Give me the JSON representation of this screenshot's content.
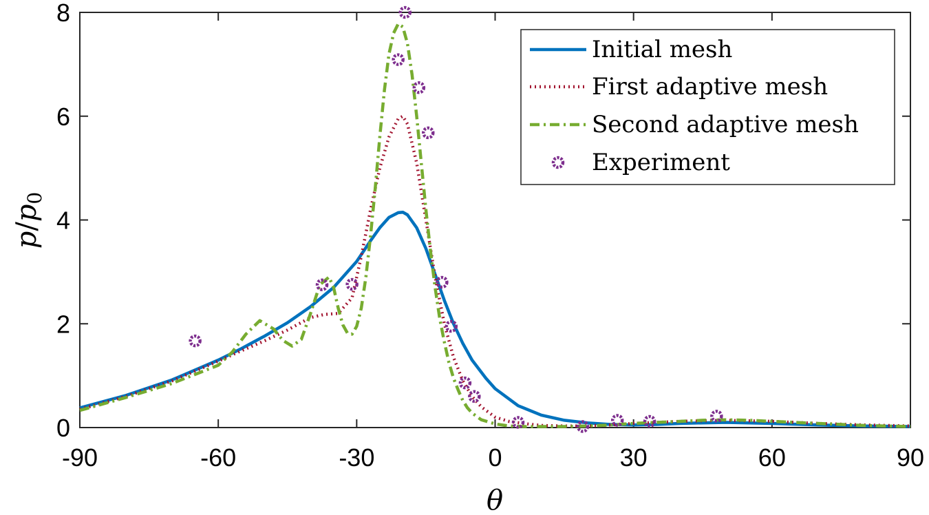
{
  "chart_data": {
    "type": "line",
    "xlabel": "θ",
    "ylabel": "p/p0",
    "ylabel_parts": {
      "p": "p",
      "slash": "/",
      "p0_base": "p",
      "p0_sub": "0"
    },
    "xlim": [
      -90,
      90
    ],
    "ylim": [
      0,
      8
    ],
    "xticks": [
      -90,
      -60,
      -30,
      0,
      30,
      60,
      90
    ],
    "yticks": [
      0,
      2,
      4,
      6,
      8
    ],
    "grid": false,
    "legend_position": "top-right",
    "series": [
      {
        "name": "Initial mesh",
        "style": "solid",
        "color": "#0072BD",
        "x": [
          -90,
          -80,
          -70,
          -60,
          -55,
          -50,
          -45,
          -40,
          -35,
          -30,
          -27,
          -25,
          -23,
          -21,
          -20,
          -19,
          -17,
          -15,
          -13,
          -11,
          -9,
          -7,
          -5,
          -2,
          0,
          5,
          10,
          15,
          20,
          25,
          30,
          35,
          40,
          45,
          50,
          55,
          60,
          70,
          80,
          90
        ],
        "y": [
          0.38,
          0.62,
          0.92,
          1.3,
          1.52,
          1.76,
          2.02,
          2.33,
          2.7,
          3.2,
          3.6,
          3.85,
          4.05,
          4.14,
          4.15,
          4.1,
          3.85,
          3.45,
          2.95,
          2.45,
          2.0,
          1.62,
          1.3,
          0.95,
          0.75,
          0.42,
          0.24,
          0.14,
          0.09,
          0.06,
          0.05,
          0.06,
          0.08,
          0.09,
          0.1,
          0.09,
          0.08,
          0.05,
          0.03,
          0.02
        ]
      },
      {
        "name": "First adaptive mesh",
        "style": "dotted",
        "color": "#A2142F",
        "x": [
          -90,
          -80,
          -70,
          -60,
          -55,
          -50,
          -45,
          -40,
          -37,
          -34,
          -31,
          -29,
          -27,
          -25,
          -23,
          -21,
          -20,
          -19,
          -17,
          -15,
          -13,
          -11,
          -9,
          -7,
          -5,
          -3,
          0,
          3,
          6,
          10,
          15,
          20,
          25,
          30,
          35,
          40,
          45,
          50,
          55,
          60,
          70,
          80,
          90
        ],
        "y": [
          0.35,
          0.6,
          0.9,
          1.28,
          1.48,
          1.67,
          1.88,
          2.12,
          2.18,
          2.2,
          2.5,
          3.3,
          4.2,
          5.0,
          5.6,
          5.95,
          6.0,
          5.85,
          5.1,
          4.0,
          2.9,
          2.0,
          1.35,
          0.9,
          0.6,
          0.4,
          0.2,
          0.12,
          0.08,
          0.04,
          0.03,
          0.03,
          0.05,
          0.08,
          0.1,
          0.12,
          0.13,
          0.14,
          0.13,
          0.12,
          0.08,
          0.05,
          0.03
        ]
      },
      {
        "name": "Second adaptive mesh",
        "style": "dashdot",
        "color": "#77AC30",
        "x": [
          -90,
          -80,
          -70,
          -60,
          -57,
          -54,
          -51,
          -48,
          -46,
          -44,
          -42,
          -40,
          -38,
          -36,
          -35,
          -34,
          -33,
          -32,
          -31,
          -30,
          -29,
          -28,
          -27,
          -26,
          -25,
          -24,
          -23,
          -22,
          -21,
          -20,
          -19,
          -18,
          -17,
          -16,
          -15,
          -14,
          -13,
          -12,
          -11,
          -10,
          -9,
          -8,
          -7,
          -6,
          -5,
          -3,
          0,
          3,
          6,
          10,
          15,
          20,
          25,
          30,
          35,
          40,
          45,
          50,
          55,
          60,
          70,
          80,
          90
        ],
        "y": [
          0.33,
          0.58,
          0.85,
          1.2,
          1.45,
          1.8,
          2.06,
          1.9,
          1.68,
          1.57,
          1.7,
          2.2,
          2.75,
          2.9,
          2.7,
          2.3,
          1.98,
          1.82,
          1.8,
          1.95,
          2.3,
          2.9,
          3.7,
          4.6,
          5.6,
          6.5,
          7.2,
          7.6,
          7.78,
          7.72,
          7.4,
          6.8,
          6.0,
          5.1,
          4.2,
          3.4,
          2.7,
          2.1,
          1.65,
          1.25,
          0.95,
          0.72,
          0.52,
          0.38,
          0.28,
          0.15,
          0.07,
          0.03,
          0.02,
          0.02,
          0.02,
          0.03,
          0.05,
          0.08,
          0.1,
          0.12,
          0.14,
          0.15,
          0.14,
          0.12,
          0.08,
          0.04,
          0.02
        ]
      },
      {
        "name": "Experiment",
        "style": "markers",
        "color": "#7E2F8E",
        "x": [
          -65,
          -37.5,
          -31,
          -21,
          -19.5,
          -16.5,
          -14.5,
          -11.5,
          -9.5,
          -6.5,
          -4.5,
          5,
          19,
          26.5,
          33.5,
          48
        ],
        "y": [
          1.67,
          2.75,
          2.76,
          7.09,
          8.0,
          6.55,
          5.68,
          2.8,
          1.95,
          0.86,
          0.6,
          0.1,
          0.02,
          0.14,
          0.12,
          0.22
        ]
      }
    ]
  }
}
